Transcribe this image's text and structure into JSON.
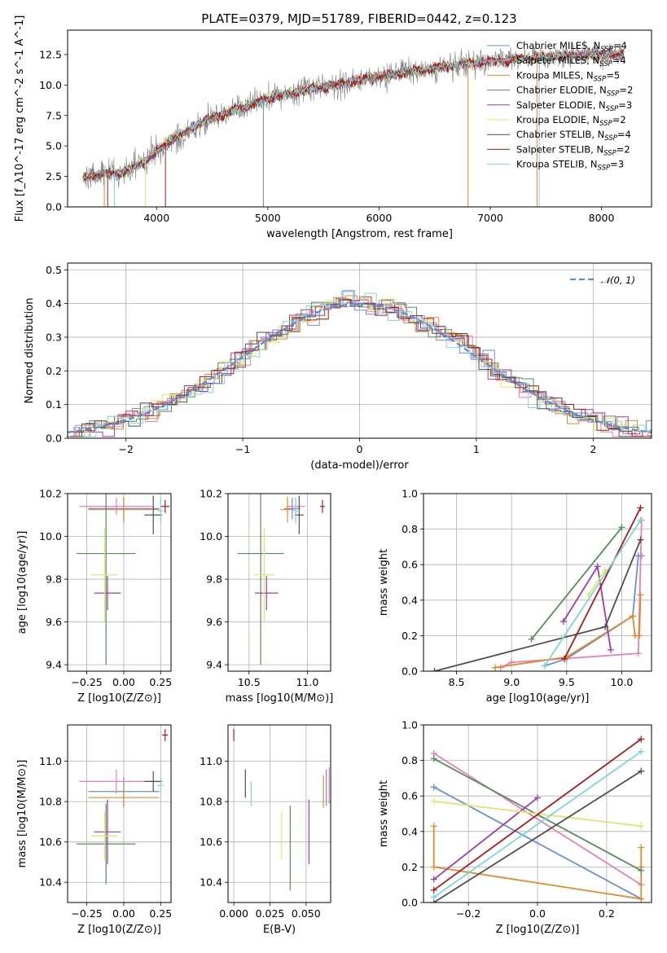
{
  "figure": {
    "title": "PLATE=0379, MJD=51789, FIBERID=0442, z=0.123"
  },
  "model_colors": {
    "Chabrier MILES": "#6a8fd8",
    "Salpeter MILES": "#e87fb8",
    "Kroupa MILES": "#e08a2a",
    "Chabrier ELODIE": "#5a8a5e",
    "Salpeter ELODIE": "#9e3bb0",
    "Kroupa ELODIE": "#dde86a",
    "Chabrier STELIB": "#4f4f4f",
    "Salpeter STELIB": "#a81c1c",
    "Kroupa STELIB": "#7fd4dc"
  },
  "chart_data": [
    {
      "type": "line",
      "id": "spectrum",
      "xlabel": "wavelength [Angstrom, rest frame]",
      "ylabel": "Flux [f_λ10^-17 erg cm^-2 s^-1 A^-1]",
      "xlim": [
        3200,
        8450
      ],
      "ylim": [
        0,
        14.5
      ],
      "xticks": [
        "4000",
        "5000",
        "6000",
        "7000",
        "8000"
      ],
      "yticks": [
        "0.0",
        "2.5",
        "5.0",
        "7.5",
        "10.0",
        "12.5"
      ],
      "grid": false,
      "legend": {
        "position": "upper-right",
        "entries": [
          {
            "label": "Chabrier MILES",
            "nssp": "4"
          },
          {
            "label": "Salpeter MILES",
            "nssp": "4"
          },
          {
            "label": "Kroupa MILES",
            "nssp": "5"
          },
          {
            "label": "Chabrier ELODIE",
            "nssp": "2"
          },
          {
            "label": "Salpeter ELODIE",
            "nssp": "3"
          },
          {
            "label": "Kroupa ELODIE",
            "nssp": "2"
          },
          {
            "label": "Chabrier STELIB",
            "nssp": "4"
          },
          {
            "label": "Salpeter STELIB",
            "nssp": "2"
          },
          {
            "label": "Kroupa STELIB",
            "nssp": "3"
          }
        ]
      },
      "continuum": {
        "x": [
          3350,
          3500,
          3700,
          3900,
          4100,
          4300,
          4500,
          4800,
          5000,
          5300,
          5600,
          5900,
          6200,
          6500,
          6800,
          7100,
          7400,
          7700,
          8000,
          8200
        ],
        "y": [
          2.5,
          2.7,
          2.8,
          3.8,
          5.3,
          6.4,
          7.3,
          8.2,
          8.9,
          9.5,
          10.0,
          10.5,
          11.0,
          11.4,
          11.8,
          12.0,
          12.3,
          12.4,
          12.5,
          12.5
        ]
      }
    },
    {
      "type": "line",
      "id": "residuals",
      "xlabel": "(data-model)/error",
      "ylabel": "Normed distribution",
      "xlim": [
        -2.5,
        2.5
      ],
      "ylim": [
        0,
        0.52
      ],
      "xticks": [
        "−2",
        "−1",
        "0",
        "1",
        "2"
      ],
      "yticks": [
        "0.0",
        "0.1",
        "0.2",
        "0.3",
        "0.4",
        "0.5"
      ],
      "grid": true,
      "legend": {
        "position": "upper-right",
        "entries": [
          "𝒩(0, 1)"
        ]
      },
      "reference_curve": "standard normal, dashed, color #5b8ed6"
    },
    {
      "type": "scatter",
      "id": "age_vs_Z",
      "xlabel": "Z [log10(Z/Z⊙)]",
      "ylabel": "age [log10(age/yr)]",
      "xlim": [
        -0.38,
        0.32
      ],
      "ylim": [
        9.37,
        10.2
      ],
      "xticks": [
        "−0.25",
        "0.00",
        "0.25"
      ],
      "yticks": [
        "9.4",
        "9.6",
        "9.8",
        "10.0",
        "10.2"
      ],
      "grid": true,
      "points": [
        {
          "model": "Chabrier MILES",
          "x": 0.0,
          "y": 10.13,
          "xerr": 0.24,
          "yerr": 0.05
        },
        {
          "model": "Salpeter MILES",
          "x": -0.05,
          "y": 10.14,
          "xerr": 0.25,
          "yerr": 0.04
        },
        {
          "model": "Kroupa MILES",
          "x": 0.0,
          "y": 10.125,
          "xerr": 0.24,
          "yerr": 0.06
        },
        {
          "model": "Chabrier ELODIE",
          "x": -0.12,
          "y": 9.92,
          "xerr": 0.2,
          "yerr": 0.52
        },
        {
          "model": "Salpeter ELODIE",
          "x": -0.11,
          "y": 9.735,
          "xerr": 0.09,
          "yerr": 0.08
        },
        {
          "model": "Kroupa ELODIE",
          "x": -0.13,
          "y": 9.82,
          "xerr": 0.09,
          "yerr": 0.22
        },
        {
          "model": "Chabrier STELIB",
          "x": 0.2,
          "y": 10.1,
          "xerr": 0.06,
          "yerr": 0.09
        },
        {
          "model": "Salpeter STELIB",
          "x": 0.28,
          "y": 10.14,
          "xerr": 0.03,
          "yerr": 0.03
        },
        {
          "model": "Kroupa STELIB",
          "x": 0.25,
          "y": 10.12,
          "xerr": 0.02,
          "yerr": 0.06
        }
      ]
    },
    {
      "type": "scatter",
      "id": "age_vs_mass",
      "xlabel": "mass [log10(M/M⊙)]",
      "ylabel": "",
      "xlim": [
        10.32,
        11.2
      ],
      "ylim": [
        9.37,
        10.2
      ],
      "xticks": [
        "10.5",
        "11.0"
      ],
      "yticks": [
        "9.4",
        "9.6",
        "9.8",
        "10.0",
        "10.2"
      ],
      "grid": true,
      "points": [
        {
          "model": "Chabrier MILES",
          "x": 10.87,
          "y": 10.13,
          "xerr": 0.07,
          "yerr": 0.05
        },
        {
          "model": "Salpeter MILES",
          "x": 10.9,
          "y": 10.14,
          "xerr": 0.08,
          "yerr": 0.04
        },
        {
          "model": "Kroupa MILES",
          "x": 10.83,
          "y": 10.125,
          "xerr": 0.06,
          "yerr": 0.06
        },
        {
          "model": "Chabrier ELODIE",
          "x": 10.6,
          "y": 9.92,
          "xerr": 0.2,
          "yerr": 0.52
        },
        {
          "model": "Salpeter ELODIE",
          "x": 10.65,
          "y": 9.735,
          "xerr": 0.1,
          "yerr": 0.08
        },
        {
          "model": "Kroupa ELODIE",
          "x": 10.63,
          "y": 9.82,
          "xerr": 0.09,
          "yerr": 0.22
        },
        {
          "model": "Chabrier STELIB",
          "x": 10.93,
          "y": 10.1,
          "xerr": 0.04,
          "yerr": 0.09
        },
        {
          "model": "Salpeter STELIB",
          "x": 11.13,
          "y": 10.14,
          "xerr": 0.02,
          "yerr": 0.03
        },
        {
          "model": "Kroupa STELIB",
          "x": 10.9,
          "y": 10.12,
          "xerr": 0.02,
          "yerr": 0.06
        }
      ]
    },
    {
      "type": "line",
      "id": "massweight_vs_age",
      "xlabel": "age [log10(age/yr)]",
      "ylabel": "mass weight",
      "xlim": [
        8.2,
        10.27
      ],
      "ylim": [
        0,
        1.0
      ],
      "xticks": [
        "8.5",
        "9.0",
        "9.5",
        "10.0"
      ],
      "yticks": [
        "0.0",
        "0.2",
        "0.4",
        "0.6",
        "0.8",
        "1.0"
      ],
      "grid": true,
      "series": [
        {
          "model": "Chabrier MILES",
          "x": [
            9.3,
            9.5,
            10.1,
            10.15,
            10.18
          ],
          "y": [
            0.03,
            0.07,
            0.31,
            0.65,
            0.65
          ]
        },
        {
          "model": "Salpeter MILES",
          "x": [
            8.9,
            9.0,
            10.15,
            10.18
          ],
          "y": [
            0.02,
            0.05,
            0.1,
            0.85
          ]
        },
        {
          "model": "Kroupa MILES",
          "x": [
            8.85,
            9.5,
            10.1,
            10.12,
            10.16,
            10.17
          ],
          "y": [
            0.02,
            0.08,
            0.31,
            0.2,
            0.2,
            0.43
          ]
        },
        {
          "model": "Chabrier ELODIE",
          "x": [
            9.18,
            10.0
          ],
          "y": [
            0.18,
            0.81
          ]
        },
        {
          "model": "Salpeter ELODIE",
          "x": [
            9.47,
            9.78,
            9.9
          ],
          "y": [
            0.28,
            0.59,
            0.12
          ]
        },
        {
          "model": "Kroupa ELODIE",
          "x": [
            9.7,
            9.85
          ],
          "y": [
            0.43,
            0.57
          ]
        },
        {
          "model": "Chabrier STELIB",
          "x": [
            8.3,
            9.85,
            10.17
          ],
          "y": [
            0.0,
            0.25,
            0.74
          ]
        },
        {
          "model": "Salpeter STELIB",
          "x": [
            9.48,
            10.17
          ],
          "y": [
            0.07,
            0.92
          ]
        },
        {
          "model": "Kroupa STELIB",
          "x": [
            9.3,
            10.17
          ],
          "y": [
            0.03,
            0.85
          ]
        }
      ]
    },
    {
      "type": "scatter",
      "id": "mass_vs_Z",
      "xlabel": "Z [log10(Z/Z⊙)]",
      "ylabel": "mass [log10(M/M⊙)]",
      "xlim": [
        -0.38,
        0.32
      ],
      "ylim": [
        10.3,
        11.18
      ],
      "xticks": [
        "−0.25",
        "0.00",
        "0.25"
      ],
      "yticks": [
        "10.4",
        "10.6",
        "10.8",
        "11.0"
      ],
      "grid": true,
      "points": [
        {
          "model": "Chabrier MILES",
          "x": 0.0,
          "y": 10.85,
          "xerr": 0.24,
          "yerr": 0.07
        },
        {
          "model": "Salpeter MILES",
          "x": -0.05,
          "y": 10.9,
          "xerr": 0.25,
          "yerr": 0.06
        },
        {
          "model": "Kroupa MILES",
          "x": 0.0,
          "y": 10.82,
          "xerr": 0.24,
          "yerr": 0.05
        },
        {
          "model": "Chabrier ELODIE",
          "x": -0.12,
          "y": 10.59,
          "xerr": 0.2,
          "yerr": 0.2
        },
        {
          "model": "Salpeter ELODIE",
          "x": -0.11,
          "y": 10.65,
          "xerr": 0.09,
          "yerr": 0.16
        },
        {
          "model": "Kroupa ELODIE",
          "x": -0.13,
          "y": 10.63,
          "xerr": 0.09,
          "yerr": 0.12
        },
        {
          "model": "Chabrier STELIB",
          "x": 0.2,
          "y": 10.9,
          "xerr": 0.06,
          "yerr": 0.05
        },
        {
          "model": "Salpeter STELIB",
          "x": 0.28,
          "y": 11.13,
          "xerr": 0.02,
          "yerr": 0.03
        },
        {
          "model": "Kroupa STELIB",
          "x": 0.25,
          "y": 10.88,
          "xerr": 0.02,
          "yerr": 0.04
        }
      ]
    },
    {
      "type": "scatter",
      "id": "mass_vs_EBV",
      "xlabel": "E(B-V)",
      "ylabel": "",
      "xlim": [
        -0.004,
        0.067
      ],
      "ylim": [
        10.3,
        11.18
      ],
      "xticks": [
        "0.000",
        "0.025",
        "0.050"
      ],
      "yticks": [
        "10.4",
        "10.6",
        "10.8",
        "11.0"
      ],
      "grid": true,
      "points": [
        {
          "model": "Chabrier MILES",
          "x": 0.064,
          "y": 10.87,
          "yerr": 0.09
        },
        {
          "model": "Salpeter MILES",
          "x": 0.066,
          "y": 10.88,
          "yerr": 0.09
        },
        {
          "model": "Kroupa MILES",
          "x": 0.062,
          "y": 10.85,
          "yerr": 0.08
        },
        {
          "model": "Chabrier ELODIE",
          "x": 0.039,
          "y": 10.57,
          "yerr": 0.21
        },
        {
          "model": "Salpeter ELODIE",
          "x": 0.052,
          "y": 10.65,
          "yerr": 0.16
        },
        {
          "model": "Kroupa ELODIE",
          "x": 0.033,
          "y": 10.63,
          "yerr": 0.12
        },
        {
          "model": "Chabrier STELIB",
          "x": 0.008,
          "y": 10.89,
          "yerr": 0.07
        },
        {
          "model": "Salpeter STELIB",
          "x": 0.0,
          "y": 11.13,
          "yerr": 0.03
        },
        {
          "model": "Kroupa STELIB",
          "x": 0.012,
          "y": 10.84,
          "yerr": 0.06
        }
      ]
    },
    {
      "type": "line",
      "id": "massweight_vs_Z",
      "xlabel": "Z [log10(Z/Z⊙)]",
      "ylabel": "mass weight",
      "xlim": [
        -0.33,
        0.33
      ],
      "ylim": [
        0,
        1.0
      ],
      "xticks": [
        "−0.2",
        "0.0",
        "0.2"
      ],
      "yticks": [
        "0.0",
        "0.2",
        "0.4",
        "0.6",
        "0.8",
        "1.0"
      ],
      "grid": true,
      "series": [
        {
          "model": "Chabrier MILES",
          "x": [
            -0.3,
            0.3
          ],
          "y": [
            0.65,
            0.02
          ]
        },
        {
          "model": "Salpeter MILES",
          "x": [
            -0.3,
            0.3
          ],
          "y": [
            0.84,
            0.1
          ]
        },
        {
          "model": "Kroupa MILES",
          "x": [
            -0.3,
            -0.3,
            0.3,
            0.3,
            0.3
          ],
          "y": [
            0.43,
            0.2,
            0.02,
            0.2,
            0.31
          ]
        },
        {
          "model": "Chabrier ELODIE",
          "x": [
            -0.3,
            0.3
          ],
          "y": [
            0.81,
            0.18
          ]
        },
        {
          "model": "Salpeter ELODIE",
          "x": [
            -0.3,
            0.0
          ],
          "y": [
            0.13,
            0.59
          ]
        },
        {
          "model": "Kroupa ELODIE",
          "x": [
            -0.3,
            0.3
          ],
          "y": [
            0.57,
            0.43
          ]
        },
        {
          "model": "Chabrier STELIB",
          "x": [
            -0.3,
            0.3
          ],
          "y": [
            0.0,
            0.74
          ]
        },
        {
          "model": "Salpeter STELIB",
          "x": [
            -0.3,
            0.3
          ],
          "y": [
            0.07,
            0.92
          ]
        },
        {
          "model": "Kroupa STELIB",
          "x": [
            -0.3,
            0.3
          ],
          "y": [
            0.03,
            0.85
          ]
        }
      ]
    }
  ]
}
